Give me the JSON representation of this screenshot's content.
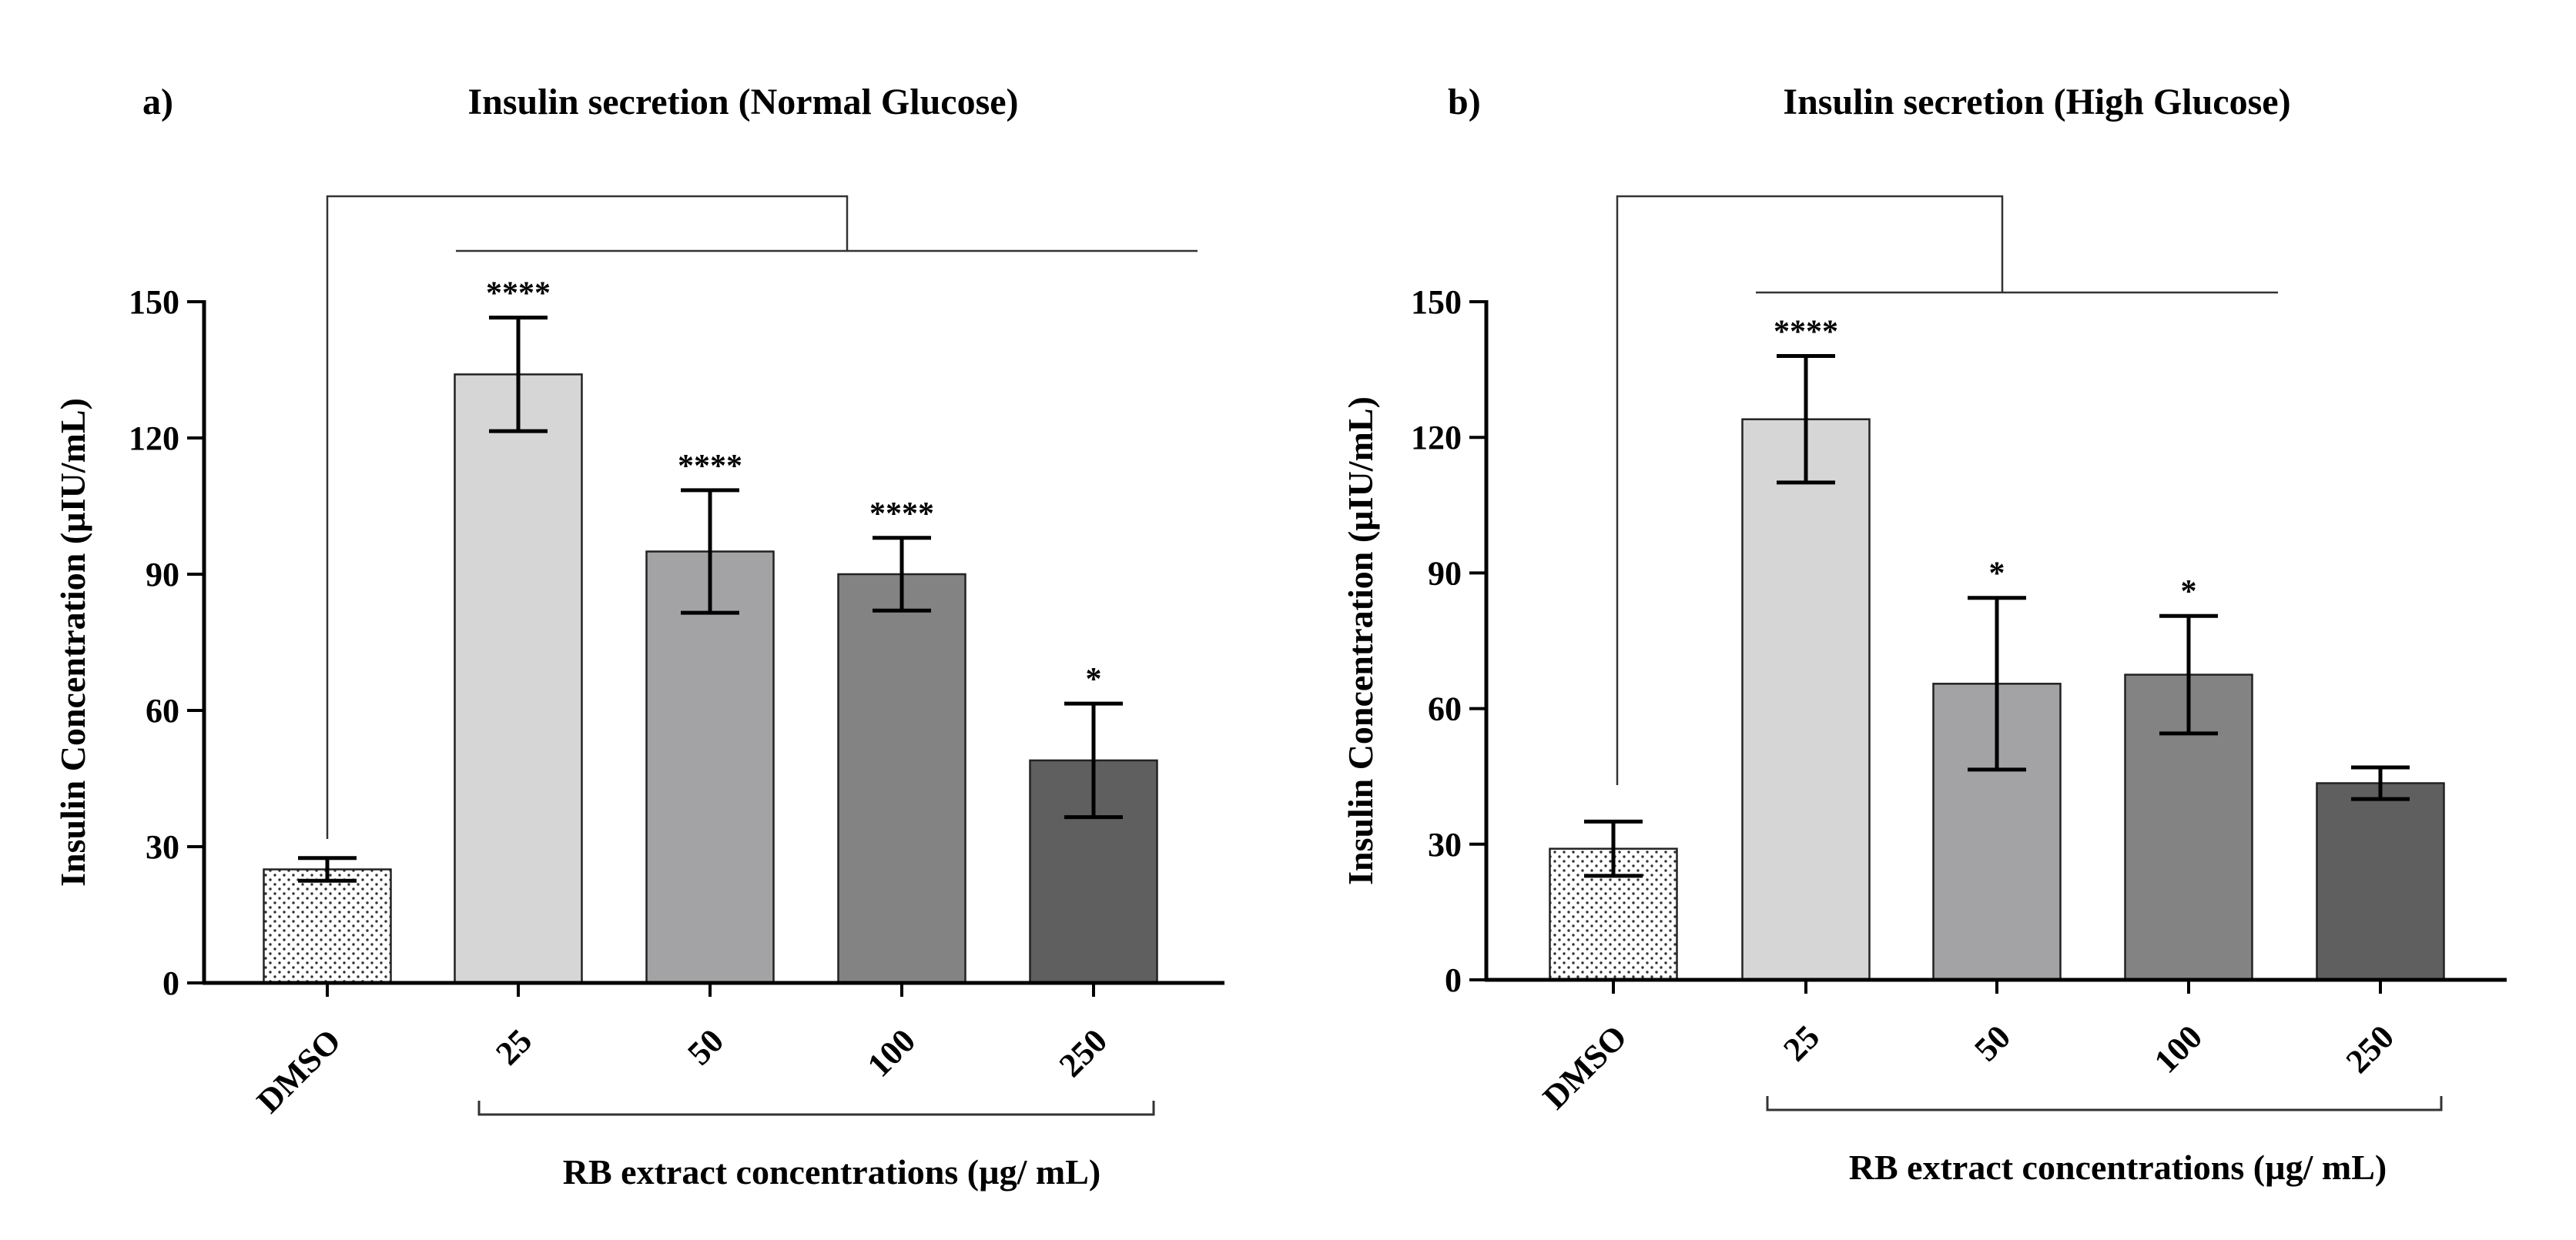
{
  "chart_data": [
    {
      "type": "bar",
      "panel_label": "a)",
      "title": "Insulin secretion (Normal Glucose)",
      "ylabel": "Insulin Concentration (µIU/mL)",
      "xlabel": "RB extract concentrations (µg/ mL)",
      "ylim": [
        0,
        150
      ],
      "yticks": [
        "0",
        "30",
        "60",
        "90",
        "120",
        "150"
      ],
      "categories": [
        "DMSO",
        "25",
        "50",
        "100",
        "250"
      ],
      "values": [
        25,
        134,
        95,
        90,
        49
      ],
      "errors": [
        2.5,
        12.5,
        13.5,
        8,
        12.5
      ],
      "significance": [
        "",
        "****",
        "****",
        "****",
        "*"
      ],
      "colors": [
        "#ffffff",
        "#d6d6d6",
        "#a3a3a6",
        "#838383",
        "#5f5f5f"
      ],
      "dotted_first_bar": true,
      "comparison_bracket": "DMSO vs 25–250"
    },
    {
      "type": "bar",
      "panel_label": "b)",
      "title": "Insulin secretion (High Glucose)",
      "ylabel": "Insulin Concentration (µIU/mL)",
      "xlabel": "RB extract concentrations (µg/ mL)",
      "ylim": [
        0,
        150
      ],
      "yticks": [
        "0",
        "30",
        "60",
        "90",
        "120",
        "150"
      ],
      "categories": [
        "DMSO",
        "25",
        "50",
        "100",
        "250"
      ],
      "values": [
        29,
        124,
        65.5,
        67.5,
        43.5
      ],
      "errors": [
        6,
        14,
        19,
        13,
        3.5
      ],
      "significance": [
        "",
        "****",
        "*",
        "*",
        ""
      ],
      "colors": [
        "#ffffff",
        "#d6d6d6",
        "#a3a3a6",
        "#838383",
        "#5f5f5f"
      ],
      "dotted_first_bar": true,
      "comparison_bracket": "DMSO vs 25–100"
    }
  ]
}
